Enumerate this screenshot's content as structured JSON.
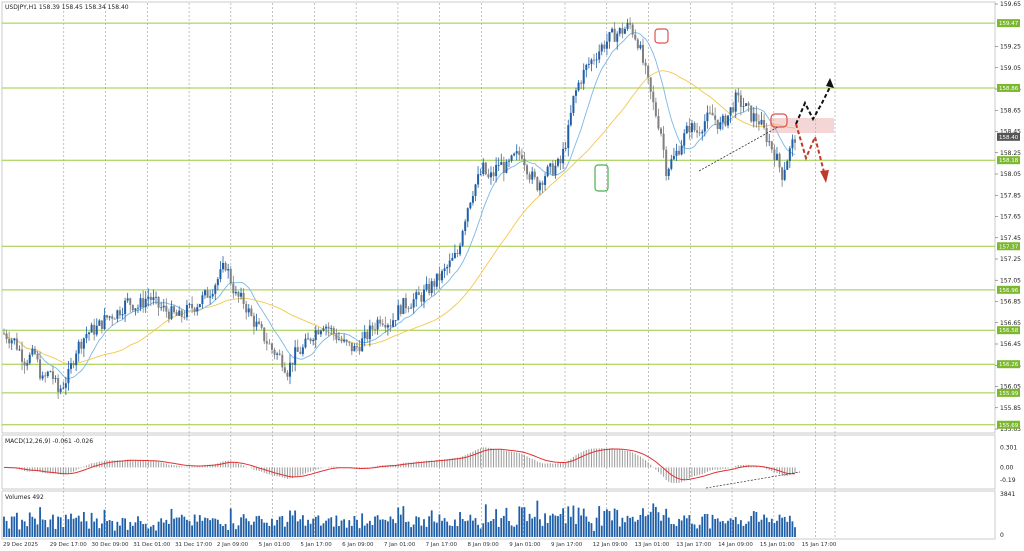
{
  "header": {
    "symbol_text": "USDJPY,H1  158.39 158.45 158.34 158.40",
    "macd_text": "MACD(12,26,9) -0.061 -0.026",
    "volume_text": "Volumes 492"
  },
  "chart_data": {
    "type": "candlestick",
    "symbol": "USDJPY",
    "timeframe": "H1",
    "ohlc_header": {
      "open": 158.39,
      "high": 158.45,
      "low": 158.34,
      "close": 158.4
    },
    "y_range": [
      155.65,
      159.65
    ],
    "price_ticks": [
      "159.65",
      "159.25",
      "159.05",
      "158.85",
      "158.65",
      "158.45",
      "158.25",
      "158.05",
      "157.85",
      "157.65",
      "157.45",
      "157.25",
      "157.05",
      "156.85",
      "156.65",
      "156.45",
      "156.25",
      "156.05",
      "155.85",
      "155.65"
    ],
    "x_ticks": [
      "29 Dec 2025",
      "29 Dec 17:00",
      "30 Dec 09:00",
      "31 Dec 01:00",
      "31 Dec 17:00",
      "2 Jan 09:00",
      "5 Jan 01:00",
      "5 Jan 17:00",
      "6 Jan 09:00",
      "7 Jan 01:00",
      "7 Jan 17:00",
      "8 Jan 09:00",
      "9 Jan 01:00",
      "9 Jan 17:00",
      "12 Jan 09:00",
      "13 Jan 01:00",
      "13 Jan 17:00",
      "14 Jan 09:00",
      "15 Jan 01:00",
      "15 Jan 17:00"
    ],
    "levels": [
      {
        "label": "159.47",
        "price": 159.47
      },
      {
        "label": "158.86",
        "price": 158.86
      },
      {
        "label": "158.18",
        "price": 158.18
      },
      {
        "label": "157.37",
        "price": 157.37
      },
      {
        "label": "156.96",
        "price": 156.96
      },
      {
        "label": "156.58",
        "price": 156.58
      },
      {
        "label": "156.26",
        "price": 156.26
      },
      {
        "label": "155.99",
        "price": 155.99
      },
      {
        "label": "155.69",
        "price": 155.69
      }
    ],
    "current_price": {
      "label": "158.40",
      "price": 158.4
    },
    "ma_fast_color": "#7ab8e6",
    "ma_slow_color": "#f2c84b",
    "bull_color": "#1f5fa8",
    "bear_color": "#7f7f7f",
    "level_color": "#9ccc3d",
    "close_path": [
      [
        0,
        156.55
      ],
      [
        4,
        156.48
      ],
      [
        8,
        156.3
      ],
      [
        12,
        156.35
      ],
      [
        15,
        156.1
      ],
      [
        18,
        156.2
      ],
      [
        21,
        156.0
      ],
      [
        25,
        156.15
      ],
      [
        28,
        156.4
      ],
      [
        32,
        156.55
      ],
      [
        36,
        156.6
      ],
      [
        40,
        156.7
      ],
      [
        44,
        156.75
      ],
      [
        48,
        156.85
      ],
      [
        52,
        156.8
      ],
      [
        56,
        156.9
      ],
      [
        60,
        156.8
      ],
      [
        64,
        156.75
      ],
      [
        68,
        156.7
      ],
      [
        72,
        156.78
      ],
      [
        76,
        156.85
      ],
      [
        80,
        156.95
      ],
      [
        84,
        157.1
      ],
      [
        86,
        157.2
      ],
      [
        88,
        157.05
      ],
      [
        90,
        156.9
      ],
      [
        93,
        156.85
      ],
      [
        96,
        156.7
      ],
      [
        100,
        156.55
      ],
      [
        104,
        156.4
      ],
      [
        108,
        156.3
      ],
      [
        110,
        156.2
      ],
      [
        113,
        156.35
      ],
      [
        116,
        156.4
      ],
      [
        120,
        156.55
      ],
      [
        124,
        156.65
      ],
      [
        128,
        156.55
      ],
      [
        132,
        156.45
      ],
      [
        136,
        156.4
      ],
      [
        140,
        156.5
      ],
      [
        143,
        156.6
      ],
      [
        146,
        156.7
      ],
      [
        150,
        156.65
      ],
      [
        154,
        156.8
      ],
      [
        158,
        156.85
      ],
      [
        162,
        156.9
      ],
      [
        166,
        157.0
      ],
      [
        170,
        157.1
      ],
      [
        173,
        157.2
      ],
      [
        176,
        157.3
      ],
      [
        178,
        157.55
      ],
      [
        180,
        157.75
      ],
      [
        182,
        157.9
      ],
      [
        184,
        158.0
      ],
      [
        186,
        158.1
      ],
      [
        188,
        158.0
      ],
      [
        190,
        158.05
      ],
      [
        192,
        158.15
      ],
      [
        195,
        158.1
      ],
      [
        198,
        158.2
      ],
      [
        201,
        158.25
      ],
      [
        204,
        158.05
      ],
      [
        207,
        157.95
      ],
      [
        210,
        158.05
      ],
      [
        213,
        158.1
      ],
      [
        216,
        158.15
      ],
      [
        219,
        158.45
      ],
      [
        221,
        158.75
      ],
      [
        223,
        158.9
      ],
      [
        226,
        159.05
      ],
      [
        229,
        159.15
      ],
      [
        232,
        159.25
      ],
      [
        236,
        159.35
      ],
      [
        240,
        159.4
      ],
      [
        243,
        159.45
      ],
      [
        246,
        159.3
      ],
      [
        249,
        159.0
      ],
      [
        252,
        158.7
      ],
      [
        255,
        158.45
      ],
      [
        257,
        158.1
      ],
      [
        260,
        158.2
      ],
      [
        263,
        158.35
      ],
      [
        266,
        158.5
      ],
      [
        269,
        158.45
      ],
      [
        272,
        158.55
      ],
      [
        275,
        158.6
      ],
      [
        278,
        158.5
      ],
      [
        281,
        158.6
      ],
      [
        284,
        158.75
      ],
      [
        287,
        158.7
      ],
      [
        290,
        158.6
      ],
      [
        293,
        158.55
      ],
      [
        296,
        158.4
      ],
      [
        299,
        158.25
      ],
      [
        302,
        158.05
      ],
      [
        304,
        158.2
      ],
      [
        307,
        158.4
      ]
    ],
    "macd": {
      "label_value": -0.061,
      "signal_value": -0.026,
      "ticks": [
        "0.301",
        "0.00",
        "-0.19"
      ]
    },
    "volume": {
      "label_value": 492,
      "ticks": [
        "3841",
        "0"
      ]
    }
  }
}
